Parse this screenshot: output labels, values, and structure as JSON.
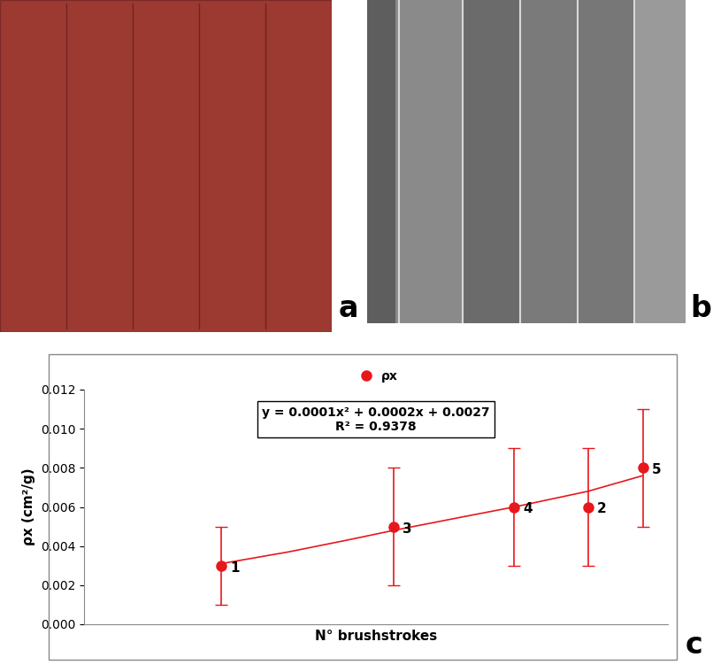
{
  "panel_labels": [
    "a",
    "b",
    "c"
  ],
  "chart_data": {
    "type": "scatter",
    "x_label": "N° brushstrokes",
    "y_label": "ρx (cm²/g)",
    "legend": "upper center",
    "series": [
      {
        "name": "ρx",
        "type": "scatter",
        "color": "#e8171c",
        "marker": "o",
        "x": [
          2.35,
          5.3,
          7.37,
          8.63,
          9.57
        ],
        "values": [
          0.003,
          0.005,
          0.006,
          0.006,
          0.008
        ],
        "error": [
          0.002,
          0.003,
          0.003,
          0.003,
          0.003
        ],
        "point_labels": [
          "1",
          "3",
          "4",
          "2",
          "5"
        ]
      },
      {
        "type": "line",
        "color": "#e8171c",
        "line_style": "solid",
        "x": [
          2.35,
          3.5,
          4.5,
          5.3,
          6.5,
          7.37,
          8.63,
          9.57
        ],
        "values": [
          0.0031,
          0.0037,
          0.0043,
          0.0048,
          0.0055,
          0.006,
          0.0068,
          0.0076
        ]
      }
    ],
    "annotations": [
      "y = 0.0001x² + 0.0002x + 0.0027",
      "R² = 0.9378"
    ],
    "xlim": [
      0,
      10
    ],
    "ylim": [
      0,
      0.012
    ],
    "yticks": [
      {
        "value": 0,
        "label": "0.000"
      },
      {
        "value": 0.002,
        "label": "0.002"
      },
      {
        "value": 0.004,
        "label": "0.004"
      },
      {
        "value": 0.006,
        "label": "0.006"
      },
      {
        "value": 0.008,
        "label": "0.008"
      },
      {
        "value": 0.01,
        "label": "0.010"
      },
      {
        "value": 0.012,
        "label": "0.012"
      }
    ],
    "tick_labels": "y",
    "grid": false
  }
}
